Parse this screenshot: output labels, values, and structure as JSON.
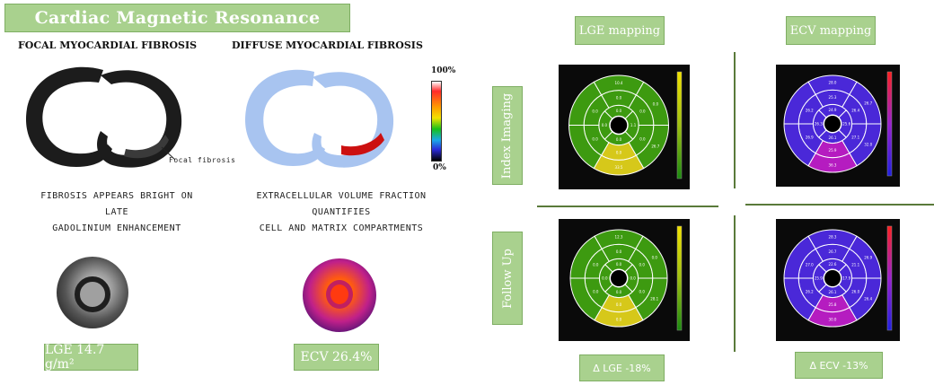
{
  "title": "Cardiac Magnetic Resonance",
  "left": {
    "focal_heading": "FOCAL MYOCARDIAL FIBROSIS",
    "diffuse_heading": "DIFFUSE MYOCARDIAL FIBROSIS",
    "focal_label": "Focal fibrosis",
    "colorbar_top": "100%",
    "colorbar_bottom": "0%",
    "focal_caption_line1": "FIBROSIS APPEARS BRIGHT ON LATE",
    "focal_caption_line2": "GADOLINIUM ENHANCEMENT",
    "diffuse_caption_line1": "EXTRACELLULAR VOLUME FRACTION QUANTIFIES",
    "diffuse_caption_line2": "CELL AND MATRIX COMPARTMENTS",
    "lge_value": "LGE 14.7 g/m²",
    "ecv_value": "ECV 26.4%"
  },
  "right": {
    "lge_header": "LGE mapping",
    "ecv_header": "ECV mapping",
    "row1_label": "Index Imaging",
    "row2_label": "Follow Up",
    "delta_lge": "Δ LGE -18%",
    "delta_ecv": "Δ ECV -13%",
    "lge_index_values": [
      "0.0",
      "1.1",
      "0.0",
      "0.0",
      "0.0",
      "0.0",
      "0.0",
      "0.0",
      "0.0",
      "0.0",
      "10.4",
      "0.0",
      "26.7",
      "33.5"
    ],
    "lge_follow_values": [
      "0.0",
      "0.0",
      "0.0",
      "0.0",
      "0.0",
      "0.0",
      "0.0",
      "0.0",
      "0.0",
      "0.0",
      "12.3",
      "0.0",
      "28.1",
      "0.0"
    ],
    "ecv_index_values": [
      "24.9",
      "25.6",
      "26.1",
      "26.3",
      "25.3",
      "26.4",
      "27.1",
      "25.9",
      "26.9",
      "26.2",
      "28.0",
      "26.7",
      "32.0",
      "36.3"
    ],
    "ecv_follow_values": [
      "22.6",
      "17.9",
      "26.1",
      "25.9",
      "26.7",
      "21.1",
      "26.0",
      "25.8",
      "26.2",
      "27.0",
      "28.3",
      "26.9",
      "26.4",
      "30.0"
    ]
  },
  "colors": {
    "banner_green": "#a9d18e",
    "lge_green": "#3d9a10",
    "lge_yellow": "#d6c81a",
    "ecv_blue": "#4a28d8",
    "ecv_magenta": "#b51cc0",
    "fibrosis_red": "#cc1010",
    "diffuse_blue": "#a8c4f0"
  }
}
